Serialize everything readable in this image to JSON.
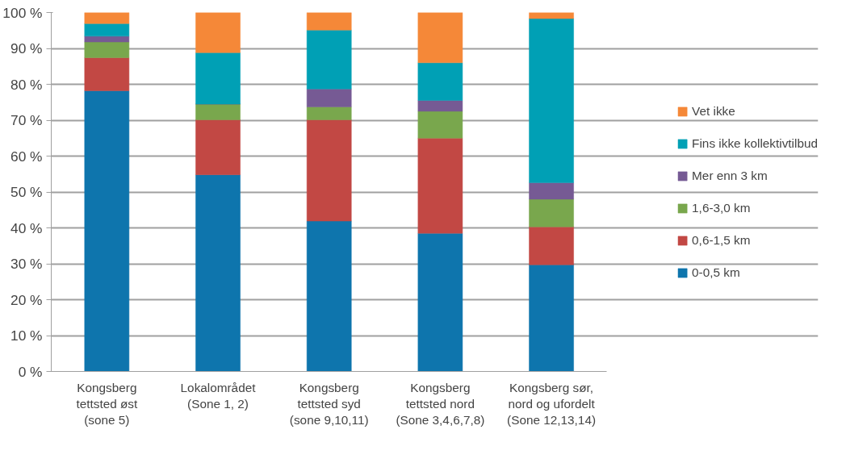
{
  "chart_data": {
    "type": "bar",
    "stacked": true,
    "categories": [
      "Kongsberg\ntettsted øst\n(sone 5)",
      "Lokalområdet\n(Sone 1, 2)",
      "Kongsberg\ntettsted syd\n(sone 9,10,11)",
      "Kongsberg\ntettsted nord\n(Sone 3,4,6,7,8)",
      "Kongsberg sør,\nnord og ufordelt\n(Sone 12,13,14)"
    ],
    "series": [
      {
        "name": "0-0,5 km",
        "color": "#0e75ad",
        "values": [
          78.2,
          54.8,
          41.9,
          38.5,
          29.7
        ]
      },
      {
        "name": "0,6-1,5 km",
        "color": "#c24844",
        "values": [
          9.2,
          15.3,
          28.2,
          26.5,
          10.6
        ]
      },
      {
        "name": "1,6-3,0 km",
        "color": "#79a74d",
        "values": [
          4.4,
          4.4,
          3.6,
          7.5,
          7.7
        ]
      },
      {
        "name": "Mer enn 3 km",
        "color": "#765a94",
        "values": [
          1.6,
          0,
          5.0,
          3.0,
          4.6
        ]
      },
      {
        "name": "Fins ikke kollektivtilbud",
        "color": "#00a0b5",
        "values": [
          3.5,
          14.3,
          16.4,
          10.5,
          45.7
        ]
      },
      {
        "name": "Vet ikke",
        "color": "#f58838",
        "values": [
          3.1,
          11.2,
          4.9,
          14.0,
          1.7
        ]
      }
    ],
    "ylim": [
      0,
      100
    ],
    "yticks": [
      {
        "value": 0,
        "label": "0 %"
      },
      {
        "value": 10,
        "label": "10 %"
      },
      {
        "value": 20,
        "label": "20 %"
      },
      {
        "value": 30,
        "label": "30 %"
      },
      {
        "value": 40,
        "label": "40 %"
      },
      {
        "value": 50,
        "label": "50 %"
      },
      {
        "value": 60,
        "label": "60 %"
      },
      {
        "value": 70,
        "label": "70 %"
      },
      {
        "value": 80,
        "label": "80 %"
      },
      {
        "value": 90,
        "label": "90 %"
      },
      {
        "value": 100,
        "label": "100 %"
      }
    ],
    "grid": "y",
    "legend": "right"
  }
}
